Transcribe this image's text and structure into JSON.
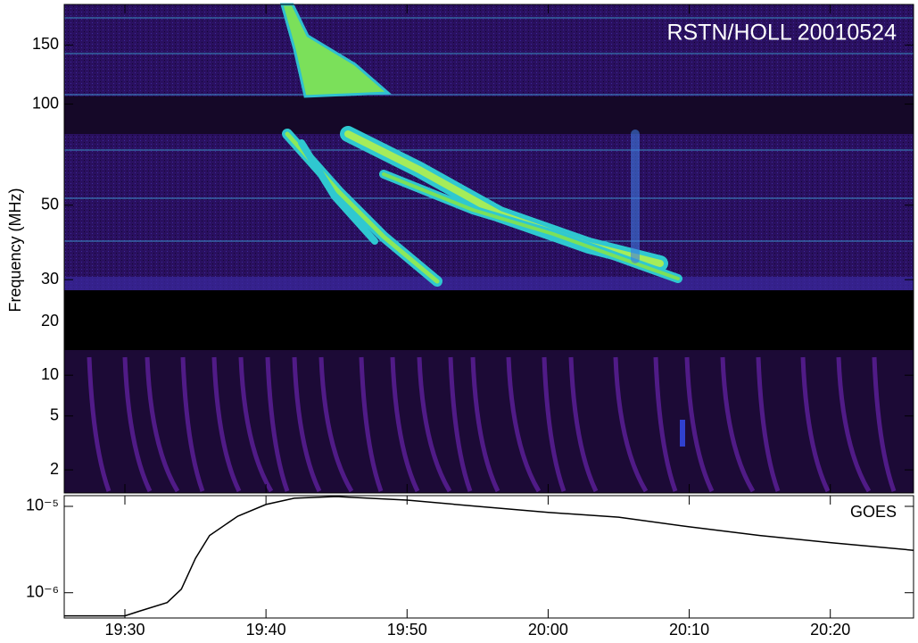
{
  "chart_data": [
    {
      "type": "spectrogram",
      "title": "RSTN/HOLL 20010524",
      "ylabel": "Frequency (MHz)",
      "yscale": "log",
      "xlim": [
        1165.7,
        1225.9
      ],
      "bands": [
        {
          "ylim": [
            27.9,
            198
          ],
          "yticks": [
            30,
            50,
            100,
            150
          ]
        },
        {
          "ylim": [
            14,
            27.9
          ],
          "yticks": [
            20
          ]
        },
        {
          "ylim": [
            1.35,
            14
          ],
          "yticks": [
            2,
            5,
            10
          ]
        }
      ]
    },
    {
      "type": "line",
      "annotation": "GOES",
      "yscale": "log",
      "color": "#000000",
      "xlim": [
        1165.7,
        1225.9
      ],
      "ylim": [
        5.1e-07,
        1.33e-05
      ],
      "yticks": [
        {
          "value": 1e-05,
          "label": "10⁻⁵"
        },
        {
          "value": 1e-06,
          "label": "10⁻⁶"
        }
      ],
      "xticks": [
        {
          "value": 1170,
          "label": "19:30"
        },
        {
          "value": 1180,
          "label": "19:40"
        },
        {
          "value": 1190,
          "label": "19:50"
        },
        {
          "value": 1200,
          "label": "20:00"
        },
        {
          "value": 1210,
          "label": "20:10"
        },
        {
          "value": 1220,
          "label": "20:20"
        }
      ],
      "x": [
        1165.7,
        1170,
        1171,
        1173,
        1174,
        1175,
        1176,
        1178,
        1180,
        1182,
        1185,
        1190,
        1195,
        1200,
        1205,
        1210,
        1215,
        1220,
        1225.9
      ],
      "values": [
        5.4e-07,
        5.4e-07,
        6.1e-07,
        7.7e-07,
        1.1e-06,
        2.5e-06,
        4.6e-06,
        7.7e-06,
        1.05e-05,
        1.24e-05,
        1.3e-05,
        1.18e-05,
        1e-05,
        8.5e-06,
        7.5e-06,
        5.8e-06,
        4.6e-06,
        3.8e-06,
        3.1e-06
      ]
    }
  ]
}
